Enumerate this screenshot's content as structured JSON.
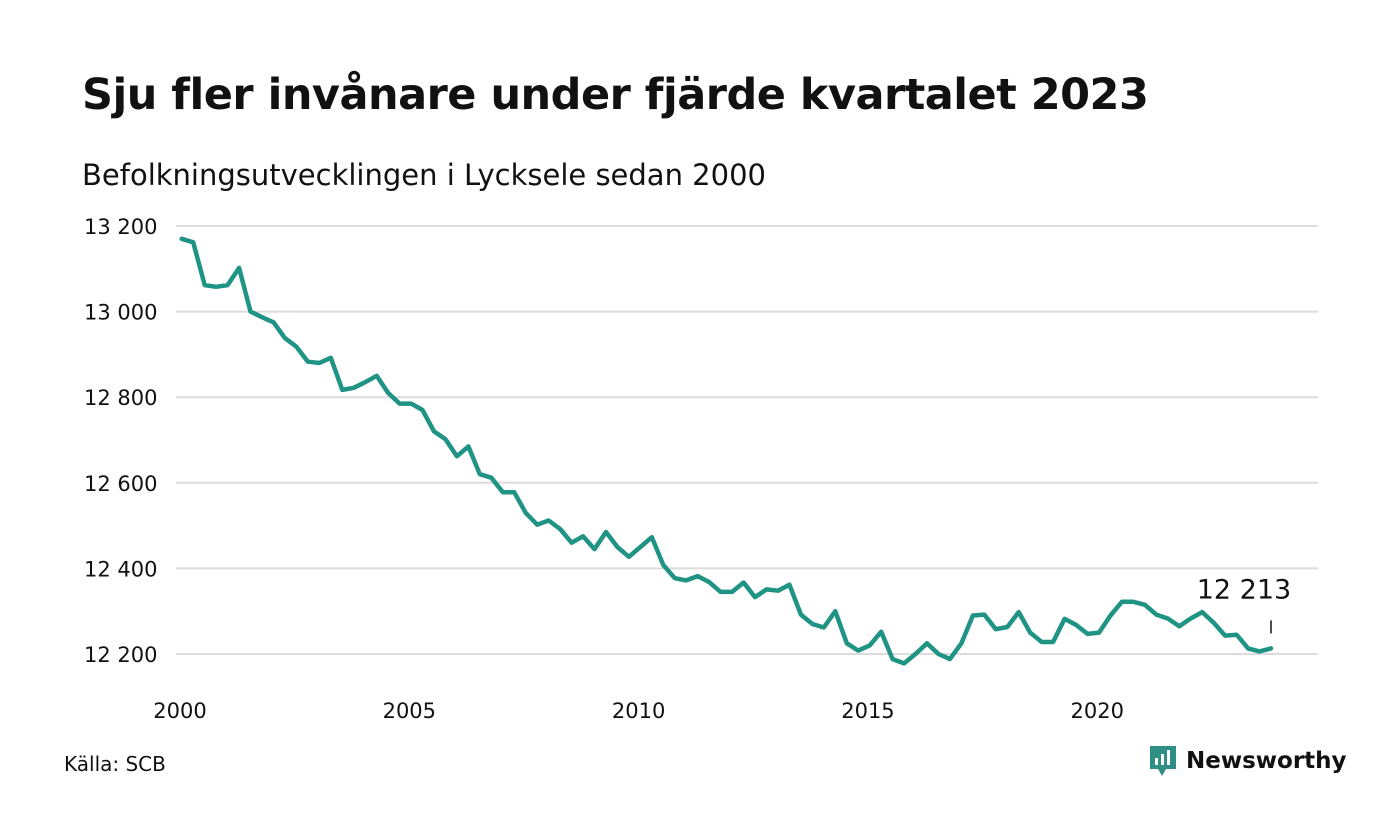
{
  "title": "Sju fler invånare under fjärde kvartalet 2023",
  "subtitle": "Befolkningsutvecklingen i Lycksele sedan 2000",
  "source": "Källa: SCB",
  "brand": {
    "name": "Newsworthy",
    "icon": "newsworthy-logo-icon"
  },
  "colors": {
    "line": "#1f9485",
    "grid": "#dcdcdc",
    "text": "#111111",
    "brand": "#2f8f84"
  },
  "chart_data": {
    "type": "line",
    "title": "Sju fler invånare under fjärde kvartalet 2023",
    "subtitle": "Befolkningsutvecklingen i Lycksele sedan 2000",
    "ylim": [
      12200,
      13200
    ],
    "yticks": [
      13200,
      13000,
      12800,
      12600,
      12400,
      12200
    ],
    "ytick_labels": [
      "13 200",
      "13 000",
      "12 800",
      "12 600",
      "12 400",
      "12 200"
    ],
    "xticks": [
      2000,
      2005,
      2010,
      2015,
      2020
    ],
    "xtick_labels": [
      "2000",
      "2005",
      "2010",
      "2015",
      "2020"
    ],
    "grid": true,
    "last_value_label": "12 213",
    "series": [
      {
        "x": [
          "2000Q1",
          "2000Q2",
          "2000Q3",
          "2000Q4",
          "2001Q1",
          "2001Q2",
          "2001Q3",
          "2001Q4",
          "2002Q1",
          "2002Q2",
          "2002Q3",
          "2002Q4",
          "2003Q1",
          "2003Q2",
          "2003Q3",
          "2003Q4",
          "2004Q1",
          "2004Q2",
          "2004Q3",
          "2004Q4",
          "2005Q1",
          "2005Q2",
          "2005Q3",
          "2005Q4",
          "2006Q1",
          "2006Q2",
          "2006Q3",
          "2006Q4",
          "2007Q1",
          "2007Q2",
          "2007Q3",
          "2007Q4",
          "2008Q1",
          "2008Q2",
          "2008Q3",
          "2008Q4",
          "2009Q1",
          "2009Q2",
          "2009Q3",
          "2009Q4",
          "2010Q1",
          "2010Q2",
          "2010Q3",
          "2010Q4",
          "2011Q1",
          "2011Q2",
          "2011Q3",
          "2011Q4",
          "2012Q1",
          "2012Q2",
          "2012Q3",
          "2012Q4",
          "2013Q1",
          "2013Q2",
          "2013Q3",
          "2013Q4",
          "2014Q1",
          "2014Q2",
          "2014Q3",
          "2014Q4",
          "2015Q1",
          "2015Q2",
          "2015Q3",
          "2015Q4",
          "2016Q1",
          "2016Q2",
          "2016Q3",
          "2016Q4",
          "2017Q1",
          "2017Q2",
          "2017Q3",
          "2017Q4",
          "2018Q1",
          "2018Q2",
          "2018Q3",
          "2018Q4",
          "2019Q1",
          "2019Q2",
          "2019Q3",
          "2019Q4",
          "2020Q1",
          "2020Q2",
          "2020Q3",
          "2020Q4",
          "2021Q1",
          "2021Q2",
          "2021Q3",
          "2021Q4",
          "2022Q1",
          "2022Q2",
          "2022Q3",
          "2022Q4",
          "2023Q1",
          "2023Q2",
          "2023Q3",
          "2023Q4"
        ],
        "values": [
          13170,
          13162,
          13062,
          13058,
          13062,
          13102,
          13000,
          12987,
          12975,
          12938,
          12918,
          12883,
          12880,
          12892,
          12817,
          12822,
          12835,
          12850,
          12810,
          12785,
          12785,
          12770,
          12720,
          12702,
          12662,
          12685,
          12620,
          12612,
          12578,
          12578,
          12530,
          12502,
          12512,
          12492,
          12460,
          12475,
          12445,
          12485,
          12450,
          12427,
          12450,
          12473,
          12408,
          12377,
          12372,
          12382,
          12368,
          12345,
          12345,
          12367,
          12333,
          12351,
          12348,
          12362,
          12292,
          12270,
          12262,
          12300,
          12225,
          12208,
          12220,
          12252,
          12188,
          12178,
          12200,
          12225,
          12200,
          12188,
          12225,
          12290,
          12292,
          12258,
          12263,
          12298,
          12250,
          12228,
          12228,
          12282,
          12268,
          12247,
          12250,
          12290,
          12322,
          12322,
          12315,
          12292,
          12283,
          12265,
          12283,
          12298,
          12273,
          12243,
          12245,
          12213,
          12206,
          12213
        ]
      }
    ]
  }
}
